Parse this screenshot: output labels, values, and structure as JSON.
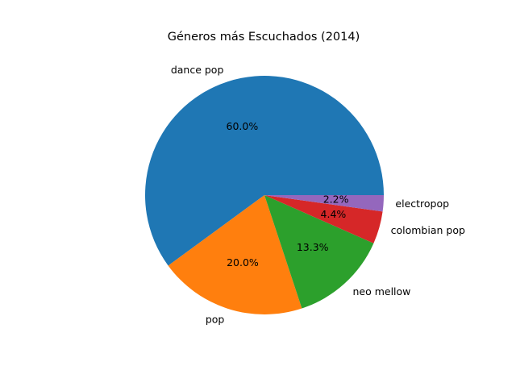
{
  "chart_data": {
    "type": "pie",
    "title": "Géneros más Escuchados (2014)",
    "categories": [
      "dance pop",
      "pop",
      "neo mellow",
      "colombian pop",
      "electropop"
    ],
    "values": [
      60.0,
      20.0,
      13.3,
      4.4,
      2.2
    ],
    "percent_labels": [
      "60.0%",
      "20.0%",
      "13.3%",
      "4.4%",
      "2.2%"
    ],
    "colors": [
      "#1f77b4",
      "#ff7f0e",
      "#2ca02c",
      "#d62728",
      "#9467bd"
    ],
    "start_angle_deg": 0,
    "direction": "counterclockwise",
    "legend": "none"
  }
}
